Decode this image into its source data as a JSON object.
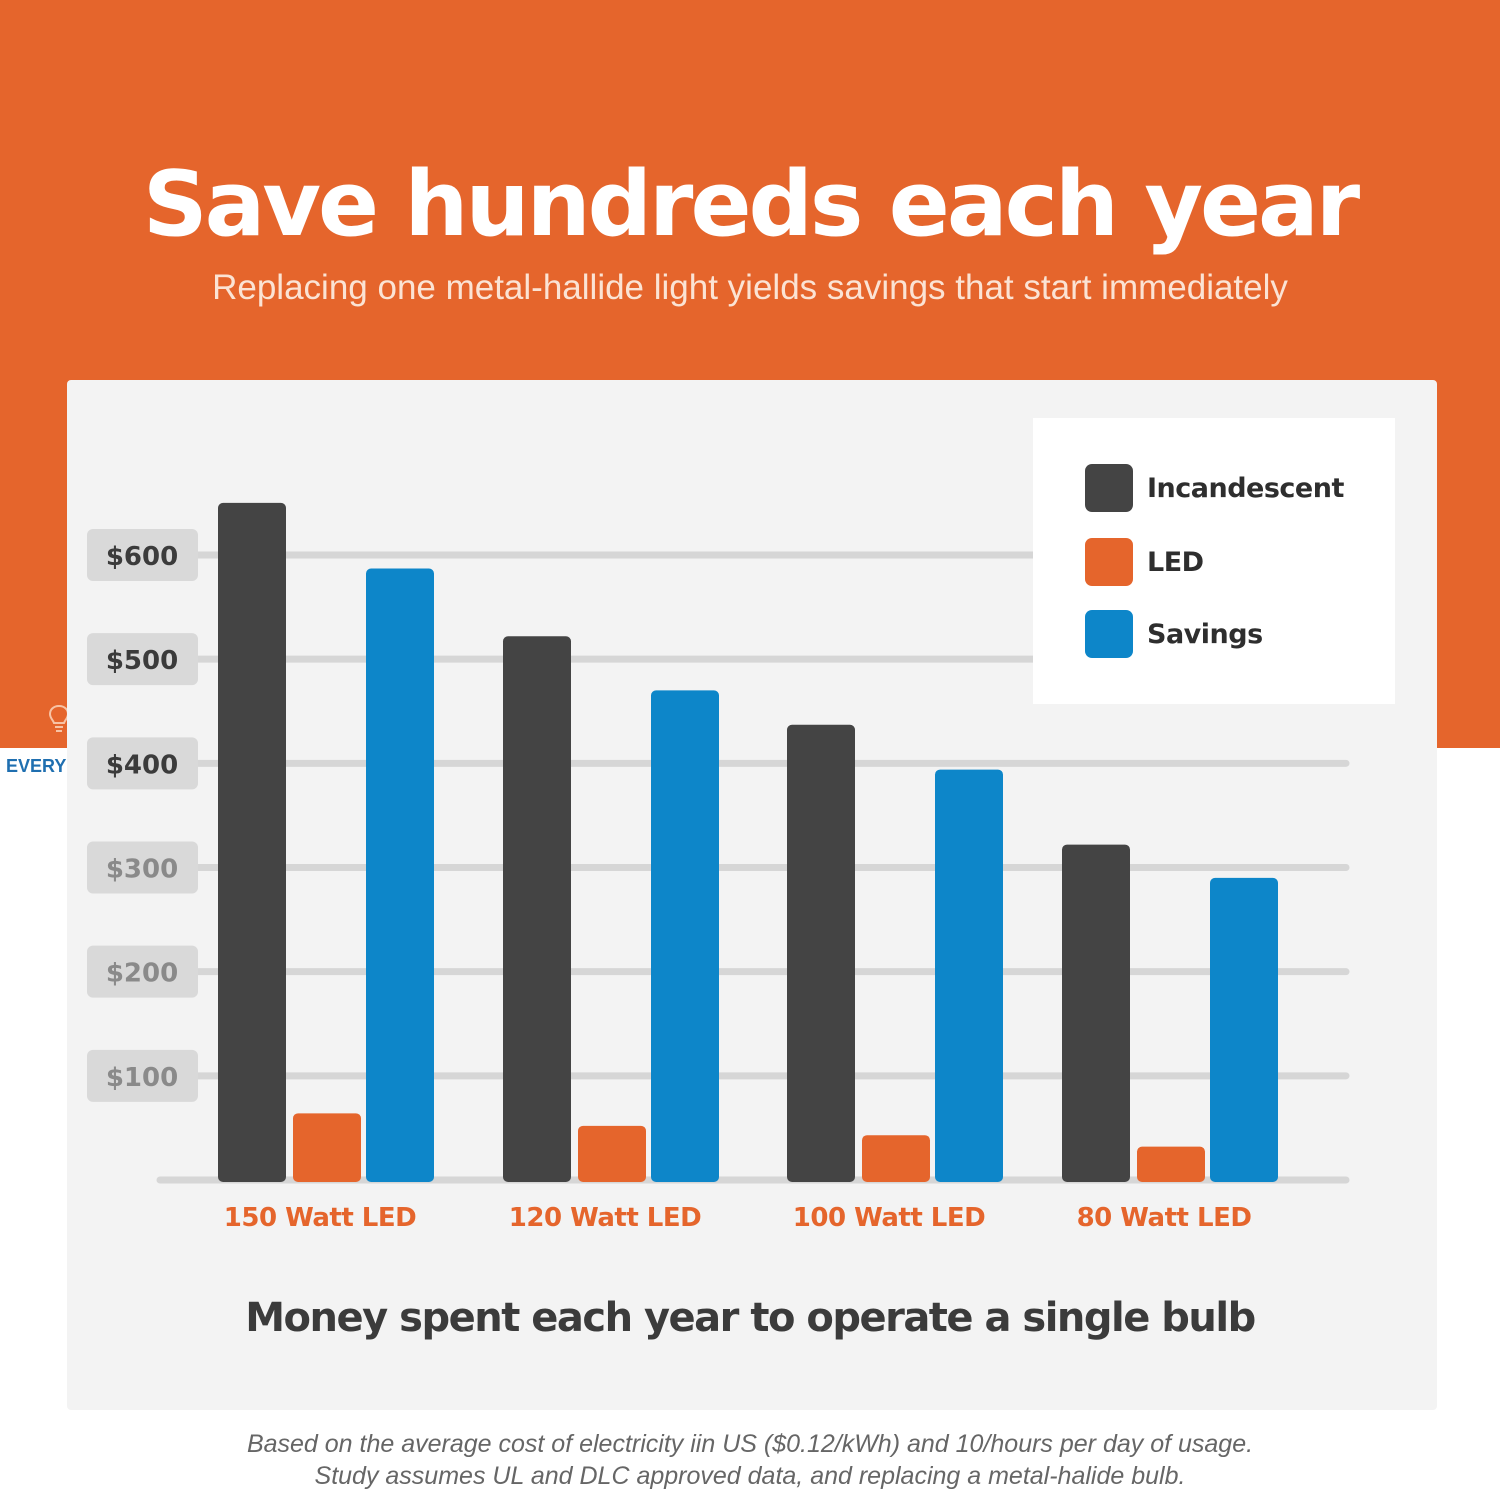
{
  "header": {
    "title": "Save hundreds each year",
    "subtitle": "Replacing one metal-hallide light yields savings that start immediately"
  },
  "brand": {
    "text": "EVERY",
    "icon": "lightbulb-icon"
  },
  "colors": {
    "background_accent": "#e5652c",
    "incandescent": "#444444",
    "led": "#e5652c",
    "savings": "#0d86c9",
    "category_label": "#e5652c"
  },
  "chart_data": {
    "type": "bar",
    "categories": [
      "150 Watt LED",
      "120 Watt LED",
      "100 Watt LED",
      "80 Watt LED"
    ],
    "series": [
      {
        "name": "Incandescent",
        "values": [
          650,
          522,
          437,
          322
        ]
      },
      {
        "name": "LED",
        "values": [
          64,
          52,
          43,
          32
        ]
      },
      {
        "name": "Savings",
        "values": [
          587,
          470,
          394,
          290
        ]
      }
    ],
    "yticks": [
      100,
      200,
      300,
      400,
      500,
      600
    ],
    "ytick_labels": [
      "$100",
      "$200",
      "$300",
      "$400",
      "$500",
      "$600"
    ],
    "ylim": [
      0,
      600
    ],
    "grid": true,
    "legend": "top-right",
    "title": "Money spent each year to operate a single bulb",
    "xlabel": "",
    "ylabel": ""
  },
  "footnote": {
    "line1": "Based on the average cost of electricity iin US ($0.12/kWh) and 10/hours per day of usage.",
    "line2": "Study assumes UL and DLC approved data, and replacing a metal-halide bulb."
  }
}
